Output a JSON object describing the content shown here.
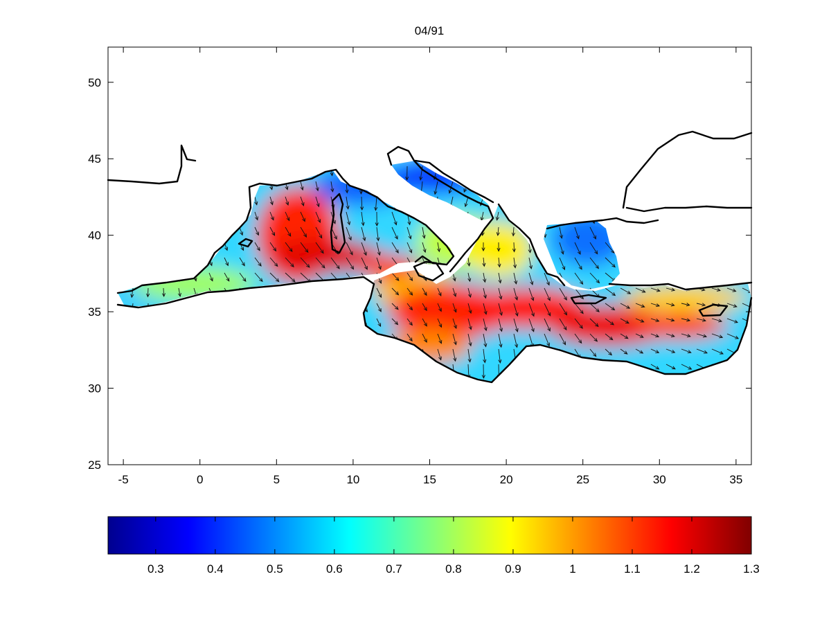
{
  "figure": {
    "title": "04/91"
  },
  "map": {
    "region": "Mediterranean Sea",
    "x_range": [
      -6,
      36
    ],
    "y_range": [
      25,
      52.3
    ],
    "x_ticks": [
      "-5",
      "0",
      "5",
      "10",
      "15",
      "20",
      "25",
      "30",
      "35"
    ],
    "y_ticks": [
      "25",
      "30",
      "35",
      "40",
      "45",
      "50"
    ],
    "field": "scalar field with overlaid vector arrows",
    "colormap": "jet",
    "vector_arrows": true
  },
  "colorbar": {
    "range": [
      0.22,
      1.3
    ],
    "tick_labels": [
      "0.3",
      "0.4",
      "0.5",
      "0.6",
      "0.7",
      "0.8",
      "0.9",
      "1",
      "1.1",
      "1.2",
      "1.3"
    ],
    "tick_values": [
      0.3,
      0.4,
      0.5,
      0.6,
      0.7,
      0.8,
      0.9,
      1.0,
      1.1,
      1.2,
      1.3
    ]
  },
  "colors": {
    "jet_stops": [
      "#00008f",
      "#0000ff",
      "#00ffff",
      "#ffff00",
      "#ff0000",
      "#800000"
    ],
    "coastline": "#000000",
    "background": "#ffffff"
  }
}
